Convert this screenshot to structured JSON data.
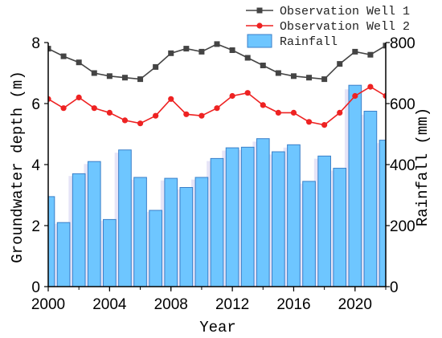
{
  "chart_data": {
    "type": "bar+line",
    "x": [
      2000,
      2001,
      2002,
      2003,
      2004,
      2005,
      2006,
      2007,
      2008,
      2009,
      2010,
      2011,
      2012,
      2013,
      2014,
      2015,
      2016,
      2017,
      2018,
      2019,
      2020,
      2021,
      2022
    ],
    "xlabel": "Year",
    "xlim": [
      2000,
      2022
    ],
    "x_ticks": [
      "2000",
      "2004",
      "2008",
      "2012",
      "2016",
      "2020"
    ],
    "ylabel_left": "Groundwater depth (m)",
    "ylim_left": [
      0,
      8
    ],
    "y_ticks_left": [
      "0",
      "2",
      "4",
      "6",
      "8"
    ],
    "ylabel_right": "Rainfall (mm)",
    "ylim_right": [
      0,
      800
    ],
    "y_ticks_right": [
      "0",
      "200",
      "400",
      "600",
      "800"
    ],
    "series": [
      {
        "name": "Observation Well 1",
        "axis": "left",
        "kind": "line",
        "marker": "square",
        "color": "#444444",
        "values": [
          7.8,
          7.55,
          7.35,
          7.0,
          6.9,
          6.85,
          6.8,
          7.2,
          7.65,
          7.8,
          7.7,
          7.95,
          7.75,
          7.5,
          7.25,
          7.0,
          6.9,
          6.85,
          6.8,
          7.3,
          7.7,
          7.6,
          7.9
        ]
      },
      {
        "name": "Observation Well 2",
        "axis": "left",
        "kind": "line",
        "marker": "circle",
        "color": "#ee2222",
        "values": [
          6.15,
          5.85,
          6.2,
          5.85,
          5.7,
          5.45,
          5.35,
          5.6,
          6.15,
          5.65,
          5.6,
          5.85,
          6.25,
          6.35,
          5.95,
          5.7,
          5.7,
          5.4,
          5.3,
          5.7,
          6.25,
          6.55,
          6.25
        ]
      },
      {
        "name": "Rainfall",
        "axis": "right",
        "kind": "bar",
        "color": "#6ec6ff",
        "edge": "#3a7fc9",
        "values": [
          295,
          210,
          370,
          410,
          220,
          448,
          358,
          250,
          355,
          325,
          358,
          420,
          455,
          457,
          485,
          442,
          465,
          345,
          428,
          388,
          660,
          575,
          480
        ]
      }
    ],
    "legend": "top-right",
    "grid": false
  },
  "colors": {
    "well1": "#444444",
    "well2": "#ee2222",
    "bar_fill": "#6ec6ff",
    "bar_edge": "#3a7fc9",
    "bar_shadow": "#b8b2e8"
  }
}
